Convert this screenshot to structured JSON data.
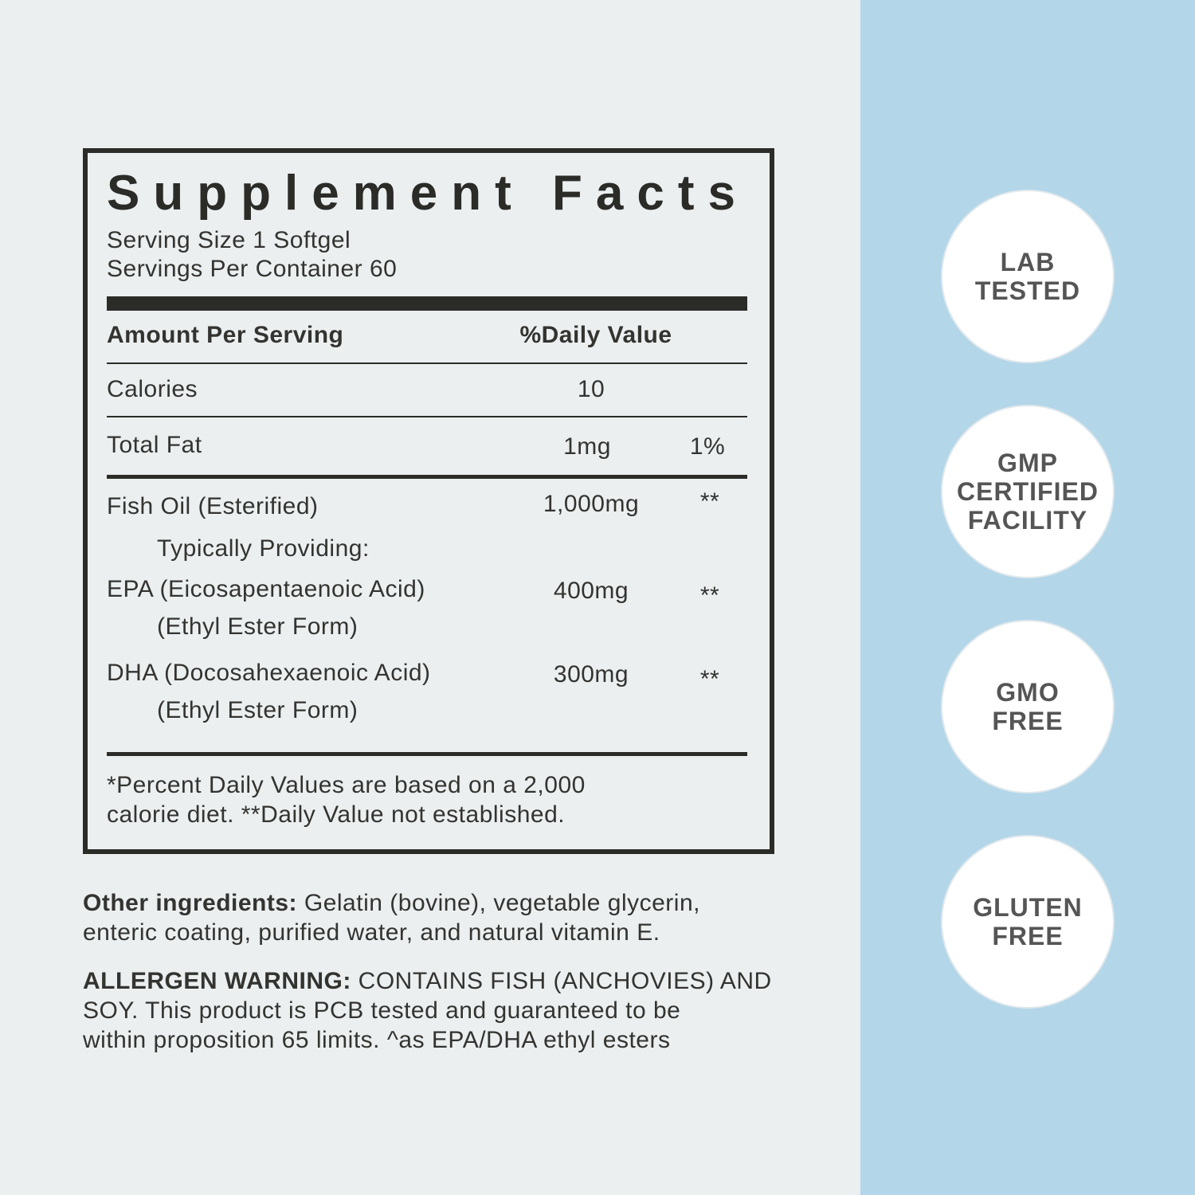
{
  "facts": {
    "title": "Supplement Facts",
    "serving_size": "Serving Size 1 Softgel",
    "servings_per_container": "Servings Per Container 60",
    "header": {
      "amount": "Amount Per Serving",
      "dv": "%Daily Value"
    },
    "rows": [
      {
        "name": "Calories",
        "amount": "10"
      },
      {
        "name": "Total Fat",
        "amount": "1mg",
        "dv": "1%"
      },
      {
        "name": "Fish Oil (Esterified)",
        "amount": "1,000mg",
        "dv": "**"
      },
      {
        "name": "Typically Providing:"
      },
      {
        "name": "EPA (Eicosapentaenoic Acid)",
        "sub": "(Ethyl Ester Form)",
        "amount": "400mg",
        "dv": "**"
      },
      {
        "name": "DHA (Docosahexaenoic Acid)",
        "sub": "(Ethyl Ester Form)",
        "amount": "300mg",
        "dv": "**"
      }
    ],
    "footnote": [
      "*Percent Daily Values are based on a 2,000",
      "calorie diet. **Daily Value not established."
    ]
  },
  "other_ingredients": {
    "label": "Other ingredients:",
    "lines": [
      "Gelatin (bovine),  vegetable glycerin,",
      "enteric coating,  purified water, and natural vitamin E."
    ]
  },
  "allergen": {
    "label": "ALLERGEN WARNING:",
    "lines": [
      "CONTAINS FISH (ANCHOVIES) AND",
      "SOY.  This product is PCB tested and guaranteed to be",
      "within proposition 65 limits.  ^as EPA/DHA ethyl esters"
    ]
  },
  "badges": [
    [
      "LAB",
      "TESTED"
    ],
    [
      "GMP",
      "CERTIFIED",
      "FACILITY"
    ],
    [
      "GMO",
      "FREE"
    ],
    [
      "GLUTEN",
      "FREE"
    ]
  ]
}
